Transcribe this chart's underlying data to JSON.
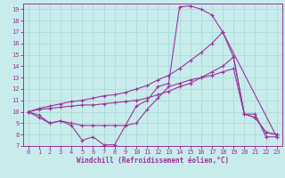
{
  "xlabel": "Windchill (Refroidissement éolien,°C)",
  "background_color": "#c8ecec",
  "grid_color": "#b0dcdc",
  "line_color": "#993399",
  "xlim": [
    -0.5,
    23.5
  ],
  "ylim": [
    7,
    19.5
  ],
  "xticks": [
    0,
    1,
    2,
    3,
    4,
    5,
    6,
    7,
    8,
    9,
    10,
    11,
    12,
    13,
    14,
    15,
    16,
    17,
    18,
    19,
    20,
    21,
    22,
    23
  ],
  "yticks": [
    7,
    8,
    9,
    10,
    11,
    12,
    13,
    14,
    15,
    16,
    17,
    18,
    19
  ],
  "series1_x": [
    0,
    1,
    2,
    3,
    4,
    5,
    6,
    7,
    8,
    9,
    10,
    11,
    12,
    13,
    14,
    15,
    16,
    17,
    18,
    19,
    20,
    21,
    22,
    23
  ],
  "series1_y": [
    10,
    9.7,
    9.0,
    9.2,
    8.8,
    7.5,
    7.8,
    7.1,
    7.1,
    8.8,
    10.5,
    11.0,
    12.2,
    12.5,
    19.2,
    19.3,
    19.0,
    18.5,
    17.0,
    14.8,
    9.8,
    9.8,
    7.8,
    7.8
  ],
  "series2_x": [
    0,
    1,
    2,
    3,
    4,
    5,
    6,
    7,
    8,
    9,
    10,
    11,
    12,
    13,
    14,
    15,
    16,
    17,
    18,
    19,
    20,
    21,
    22,
    23
  ],
  "series2_y": [
    10,
    9.5,
    9.0,
    9.2,
    9.0,
    8.8,
    8.8,
    8.8,
    8.8,
    8.8,
    9.0,
    10.2,
    11.2,
    12.2,
    12.5,
    12.8,
    13.0,
    13.2,
    13.5,
    13.8,
    9.8,
    9.5,
    8.2,
    8.0
  ],
  "series3_x": [
    0,
    1,
    2,
    3,
    4,
    5,
    6,
    7,
    8,
    9,
    10,
    11,
    12,
    13,
    14,
    15,
    16,
    17,
    18,
    19,
    20,
    21,
    22,
    23
  ],
  "series3_y": [
    10,
    10.2,
    10.3,
    10.4,
    10.5,
    10.6,
    10.6,
    10.7,
    10.8,
    10.9,
    11.0,
    11.2,
    11.5,
    11.8,
    12.2,
    12.5,
    13.0,
    13.5,
    14.0,
    14.8,
    9.8,
    9.5,
    8.2,
    8.0
  ],
  "series4_x": [
    0,
    1,
    2,
    3,
    4,
    5,
    6,
    7,
    8,
    9,
    10,
    11,
    12,
    13,
    14,
    15,
    16,
    17,
    18,
    23
  ],
  "series4_y": [
    10,
    10.3,
    10.5,
    10.7,
    10.9,
    11.0,
    11.2,
    11.4,
    11.5,
    11.7,
    12.0,
    12.3,
    12.8,
    13.2,
    13.8,
    14.5,
    15.2,
    16.0,
    17.0,
    7.8
  ]
}
